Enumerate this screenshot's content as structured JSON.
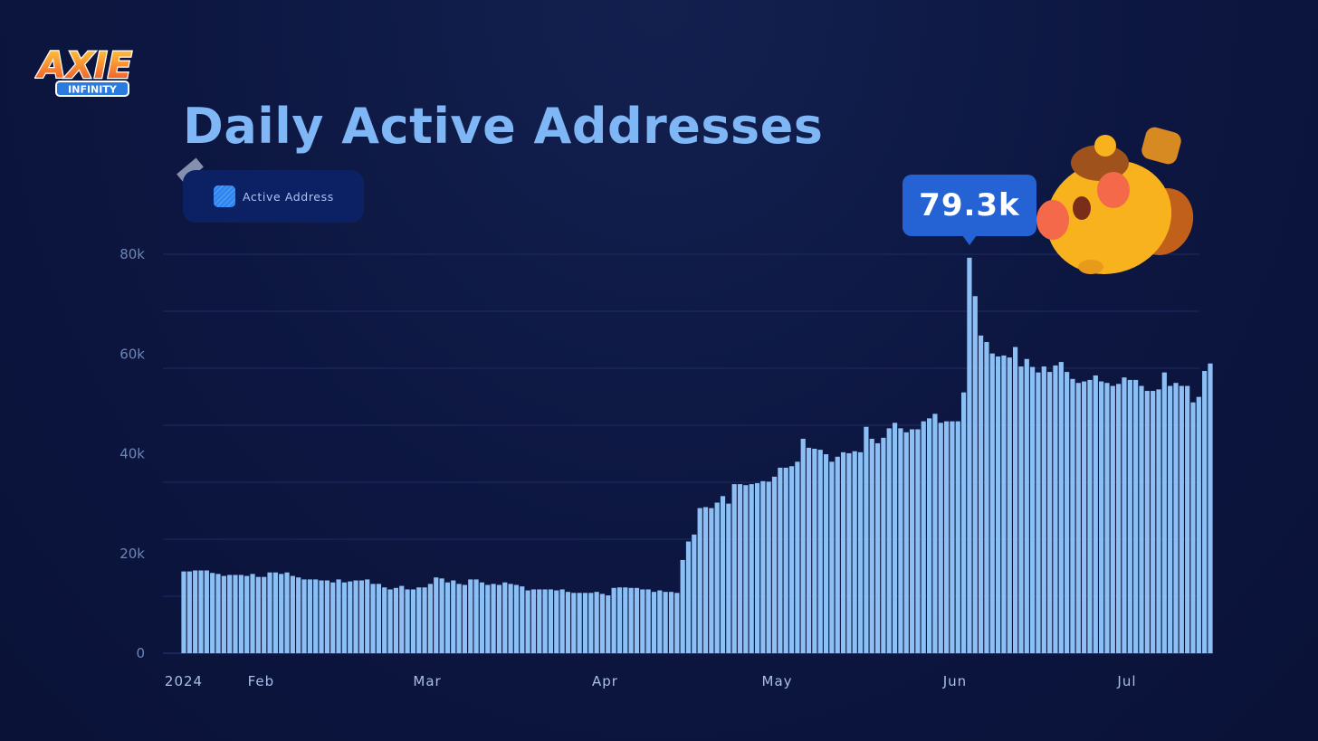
{
  "logo": {
    "word": "AXIE",
    "sub": "INFINITY"
  },
  "legend": {
    "label": "Active Address",
    "color": "#2f86f0"
  },
  "tooltip": {
    "value": "79.3k"
  },
  "colors": {
    "bar": "#8cc0f5",
    "title": "#7fb6f5",
    "tooltip": "#2563d4",
    "axis_text": "#6d86b8"
  },
  "chart_data": {
    "type": "bar",
    "title": "Daily Active Addresses",
    "xlabel": "",
    "ylabel": "",
    "ylim": [
      0,
      80000
    ],
    "grid": true,
    "legend_placement": "top-left",
    "y_ticks": [
      {
        "value": 0,
        "label": "0"
      },
      {
        "value": 20000,
        "label": "20k"
      },
      {
        "value": 40000,
        "label": "40k"
      },
      {
        "value": 60000,
        "label": "60k"
      },
      {
        "value": 80000,
        "label": "80k"
      }
    ],
    "x_ticks": [
      {
        "date": "2024-01-19",
        "label": "2024"
      },
      {
        "date": "2024-02-01",
        "label": "Feb"
      },
      {
        "date": "2024-03-01",
        "label": "Mar"
      },
      {
        "date": "2024-04-01",
        "label": "Apr"
      },
      {
        "date": "2024-05-01",
        "label": "May"
      },
      {
        "date": "2024-06-01",
        "label": "Jun"
      },
      {
        "date": "2024-07-01",
        "label": "Jul"
      }
    ],
    "annotation": {
      "date": "2024-06-04",
      "label": "79.3k"
    },
    "series": [
      {
        "name": "Active Address",
        "x": [
          "2024-01-19",
          "2024-01-20",
          "2024-01-21",
          "2024-01-22",
          "2024-01-23",
          "2024-01-24",
          "2024-01-25",
          "2024-01-26",
          "2024-01-27",
          "2024-01-28",
          "2024-01-29",
          "2024-01-30",
          "2024-01-31",
          "2024-02-01",
          "2024-02-02",
          "2024-02-03",
          "2024-02-04",
          "2024-02-05",
          "2024-02-06",
          "2024-02-07",
          "2024-02-08",
          "2024-02-09",
          "2024-02-10",
          "2024-02-11",
          "2024-02-12",
          "2024-02-13",
          "2024-02-14",
          "2024-02-15",
          "2024-02-16",
          "2024-02-17",
          "2024-02-18",
          "2024-02-19",
          "2024-02-20",
          "2024-02-21",
          "2024-02-22",
          "2024-02-23",
          "2024-02-24",
          "2024-02-25",
          "2024-02-26",
          "2024-02-27",
          "2024-02-28",
          "2024-02-29",
          "2024-03-01",
          "2024-03-02",
          "2024-03-03",
          "2024-03-04",
          "2024-03-05",
          "2024-03-06",
          "2024-03-07",
          "2024-03-08",
          "2024-03-09",
          "2024-03-10",
          "2024-03-11",
          "2024-03-12",
          "2024-03-13",
          "2024-03-14",
          "2024-03-15",
          "2024-03-16",
          "2024-03-17",
          "2024-03-18",
          "2024-03-19",
          "2024-03-20",
          "2024-03-21",
          "2024-03-22",
          "2024-03-23",
          "2024-03-24",
          "2024-03-25",
          "2024-03-26",
          "2024-03-27",
          "2024-03-28",
          "2024-03-29",
          "2024-03-30",
          "2024-03-31",
          "2024-04-01",
          "2024-04-02",
          "2024-04-03",
          "2024-04-04",
          "2024-04-05",
          "2024-04-06",
          "2024-04-07",
          "2024-04-08",
          "2024-04-09",
          "2024-04-10",
          "2024-04-11",
          "2024-04-12",
          "2024-04-13",
          "2024-04-14",
          "2024-04-15",
          "2024-04-16",
          "2024-04-17",
          "2024-04-18",
          "2024-04-19",
          "2024-04-20",
          "2024-04-21",
          "2024-04-22",
          "2024-04-23",
          "2024-04-24",
          "2024-04-25",
          "2024-04-26",
          "2024-04-27",
          "2024-04-28",
          "2024-04-29",
          "2024-04-30",
          "2024-05-01",
          "2024-05-02",
          "2024-05-03",
          "2024-05-04",
          "2024-05-05",
          "2024-05-06",
          "2024-05-07",
          "2024-05-08",
          "2024-05-09",
          "2024-05-10",
          "2024-05-11",
          "2024-05-12",
          "2024-05-13",
          "2024-05-14",
          "2024-05-15",
          "2024-05-16",
          "2024-05-17",
          "2024-05-18",
          "2024-05-19",
          "2024-05-20",
          "2024-05-21",
          "2024-05-22",
          "2024-05-23",
          "2024-05-24",
          "2024-05-25",
          "2024-05-26",
          "2024-05-27",
          "2024-05-28",
          "2024-05-29",
          "2024-05-30",
          "2024-05-31",
          "2024-06-01",
          "2024-06-02",
          "2024-06-03",
          "2024-06-04",
          "2024-06-05",
          "2024-06-06",
          "2024-06-07",
          "2024-06-08",
          "2024-06-09",
          "2024-06-10",
          "2024-06-11",
          "2024-06-12",
          "2024-06-13",
          "2024-06-14",
          "2024-06-15",
          "2024-06-16",
          "2024-06-17",
          "2024-06-18",
          "2024-06-19",
          "2024-06-20",
          "2024-06-21",
          "2024-06-22",
          "2024-06-23",
          "2024-06-24",
          "2024-06-25",
          "2024-06-26",
          "2024-06-27",
          "2024-06-28",
          "2024-06-29",
          "2024-06-30",
          "2024-07-01",
          "2024-07-02",
          "2024-07-03",
          "2024-07-04",
          "2024-07-05",
          "2024-07-06",
          "2024-07-07",
          "2024-07-08",
          "2024-07-09",
          "2024-07-10",
          "2024-07-11",
          "2024-07-12",
          "2024-07-13",
          "2024-07-14",
          "2024-07-15",
          "2024-07-16"
        ],
        "values": [
          16400,
          16400,
          16600,
          16600,
          16600,
          16100,
          15900,
          15500,
          15700,
          15700,
          15700,
          15500,
          15900,
          15300,
          15300,
          16200,
          16200,
          15900,
          16200,
          15500,
          15200,
          14800,
          14800,
          14800,
          14600,
          14600,
          14200,
          14800,
          14200,
          14400,
          14600,
          14600,
          14800,
          13900,
          13900,
          13200,
          12800,
          13100,
          13500,
          12800,
          12800,
          13200,
          13200,
          13900,
          15200,
          15000,
          14200,
          14600,
          13900,
          13700,
          14800,
          14800,
          14200,
          13700,
          13900,
          13700,
          14200,
          13900,
          13700,
          13400,
          12600,
          12800,
          12800,
          12800,
          12800,
          12600,
          12800,
          12300,
          12100,
          12100,
          12100,
          12100,
          12300,
          11900,
          11600,
          13100,
          13200,
          13200,
          13100,
          13100,
          12800,
          12800,
          12300,
          12600,
          12300,
          12300,
          12100,
          18700,
          22400,
          23800,
          29100,
          29300,
          29100,
          30200,
          31500,
          30000,
          33900,
          33900,
          33700,
          33900,
          34100,
          34500,
          34400,
          35400,
          37200,
          37200,
          37500,
          38400,
          43000,
          41200,
          41000,
          40800,
          39900,
          38400,
          39400,
          40300,
          40100,
          40500,
          40300,
          45400,
          43000,
          42100,
          43200,
          45100,
          46200,
          45100,
          44300,
          44900,
          44900,
          46500,
          47100,
          48000,
          46200,
          46500,
          46500,
          46500,
          52300,
          79300,
          71600,
          63700,
          62400,
          60100,
          59500,
          59700,
          59300,
          61400,
          57500,
          59000,
          57400,
          56300,
          57500,
          56400,
          57700,
          58400,
          56400,
          55000,
          54200,
          54500,
          54800,
          55700,
          54500,
          54200,
          53600,
          54000,
          55300,
          54800,
          54800,
          53600,
          52600,
          52600,
          52900,
          56300,
          53600,
          54200,
          53600,
          53600,
          50300,
          51400,
          56600,
          58100
        ]
      }
    ]
  }
}
